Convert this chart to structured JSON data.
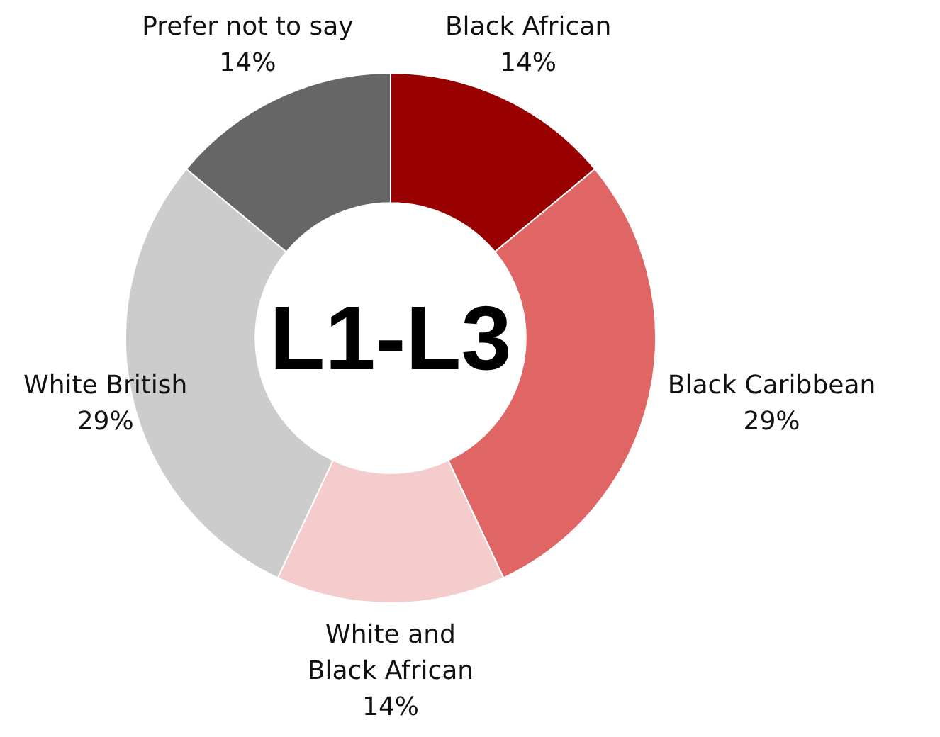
{
  "chart_data": {
    "type": "donut",
    "categories": [
      "Black African",
      "Black Caribbean",
      "White and Black African",
      "White British",
      "Prefer not to say"
    ],
    "values": [
      14,
      29,
      14,
      29,
      14
    ],
    "value_labels": [
      "14%",
      "29%",
      "14%",
      "29%",
      "14%"
    ],
    "colors": [
      "#990000",
      "#e06666",
      "#f4cccc",
      "#cccccc",
      "#666666"
    ],
    "annotations": [
      "L1-L3"
    ]
  }
}
